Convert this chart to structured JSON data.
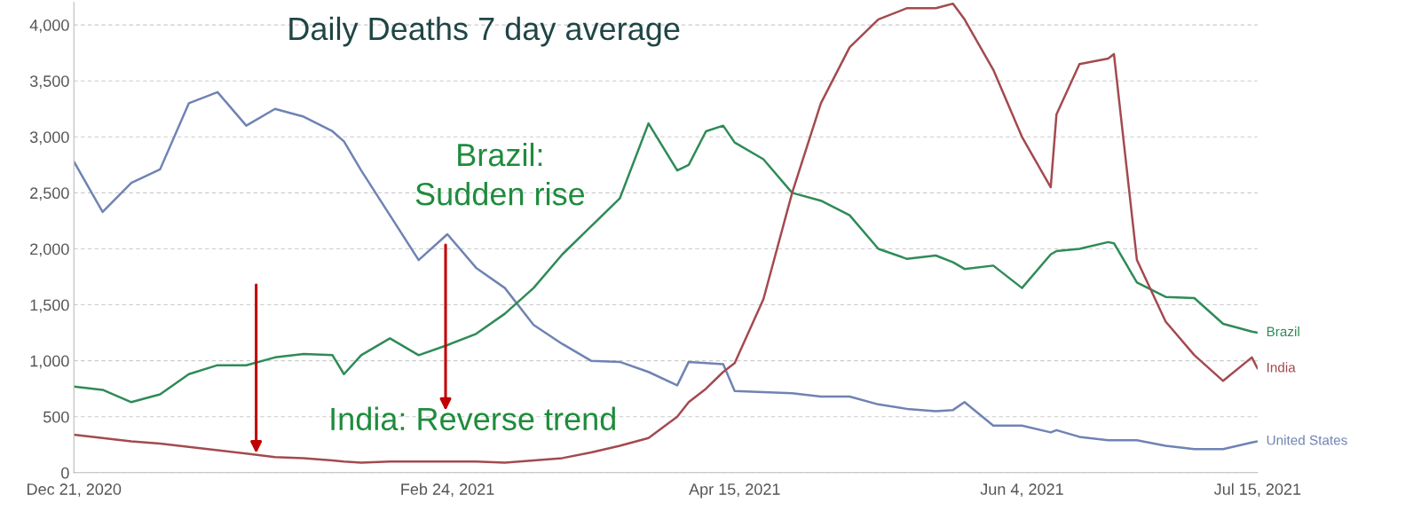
{
  "chart_data": {
    "type": "line",
    "title": "Daily Deaths 7 day average",
    "x": [
      "2020-12-21",
      "2020-12-26",
      "2020-12-31",
      "2021-01-05",
      "2021-01-10",
      "2021-01-15",
      "2021-01-20",
      "2021-01-25",
      "2021-01-30",
      "2021-02-04",
      "2021-02-06",
      "2021-02-09",
      "2021-02-14",
      "2021-02-19",
      "2021-02-24",
      "2021-03-01",
      "2021-03-06",
      "2021-03-11",
      "2021-03-16",
      "2021-03-21",
      "2021-03-26",
      "2021-03-31",
      "2021-04-05",
      "2021-04-07",
      "2021-04-10",
      "2021-04-13",
      "2021-04-15",
      "2021-04-20",
      "2021-04-25",
      "2021-04-30",
      "2021-05-05",
      "2021-05-10",
      "2021-05-15",
      "2021-05-20",
      "2021-05-23",
      "2021-05-25",
      "2021-05-30",
      "2021-06-04",
      "2021-06-09",
      "2021-06-10",
      "2021-06-14",
      "2021-06-19",
      "2021-06-20",
      "2021-06-24",
      "2021-06-29",
      "2021-07-04",
      "2021-07-09",
      "2021-07-14",
      "2021-07-15"
    ],
    "series": [
      {
        "name": "United States",
        "color": "#6f83b3",
        "values": [
          2780,
          2330,
          2590,
          2710,
          3300,
          3400,
          3100,
          3250,
          3180,
          3050,
          2960,
          2700,
          2300,
          1900,
          2130,
          1830,
          1650,
          1320,
          1150,
          1000,
          990,
          900,
          780,
          990,
          980,
          970,
          730,
          720,
          710,
          680,
          680,
          610,
          570,
          550,
          560,
          630,
          420,
          420,
          360,
          380,
          320,
          290,
          290,
          290,
          240,
          210,
          210,
          270,
          280
        ]
      },
      {
        "name": "Brazil",
        "color": "#2e8b57",
        "values": [
          770,
          740,
          630,
          700,
          880,
          960,
          960,
          1030,
          1060,
          1050,
          880,
          1050,
          1200,
          1050,
          1140,
          1240,
          1420,
          1650,
          1950,
          2200,
          2450,
          3120,
          2700,
          2750,
          3050,
          3100,
          2950,
          2800,
          2500,
          2430,
          2300,
          2000,
          1910,
          1940,
          1880,
          1820,
          1850,
          1650,
          1950,
          1980,
          2000,
          2060,
          2050,
          1700,
          1570,
          1560,
          1330,
          1260,
          1250
        ]
      },
      {
        "name": "India",
        "color": "#a34a4f",
        "values": [
          340,
          310,
          280,
          260,
          230,
          200,
          170,
          140,
          130,
          110,
          100,
          90,
          100,
          100,
          100,
          100,
          90,
          110,
          130,
          180,
          240,
          310,
          500,
          630,
          750,
          900,
          980,
          1550,
          2500,
          3300,
          3800,
          4050,
          4150,
          4150,
          4190,
          4050,
          3600,
          3000,
          2550,
          3200,
          3650,
          3700,
          3740,
          1900,
          1350,
          1050,
          820,
          1030,
          930
        ]
      }
    ],
    "xlim": [
      "2020-12-21",
      "2021-07-15"
    ],
    "xticks": [
      {
        "value": "2020-12-21",
        "label": "Dec 21, 2020"
      },
      {
        "value": "2021-02-24",
        "label": "Feb 24, 2021"
      },
      {
        "value": "2021-04-15",
        "label": "Apr 15, 2021"
      },
      {
        "value": "2021-06-04",
        "label": "Jun 4, 2021"
      },
      {
        "value": "2021-07-15",
        "label": "Jul 15, 2021"
      }
    ],
    "ylim": [
      0,
      4200
    ],
    "yticks": [
      0,
      500,
      {
        "value": 1000,
        "label": "1,000"
      },
      {
        "value": 1500,
        "label": "1,500"
      },
      {
        "value": 2000,
        "label": "2,000"
      },
      {
        "value": 2500,
        "label": "2,500"
      },
      {
        "value": 3000,
        "label": "3,000"
      },
      {
        "value": 3500,
        "label": "3,500"
      },
      {
        "value": 4000,
        "label": "4,000"
      }
    ],
    "grid": "y",
    "legend": false,
    "marker": "none",
    "line_style": "solid",
    "annotations": [
      "Brazil:\nSudden rise",
      "India: Reverse trend"
    ]
  }
}
